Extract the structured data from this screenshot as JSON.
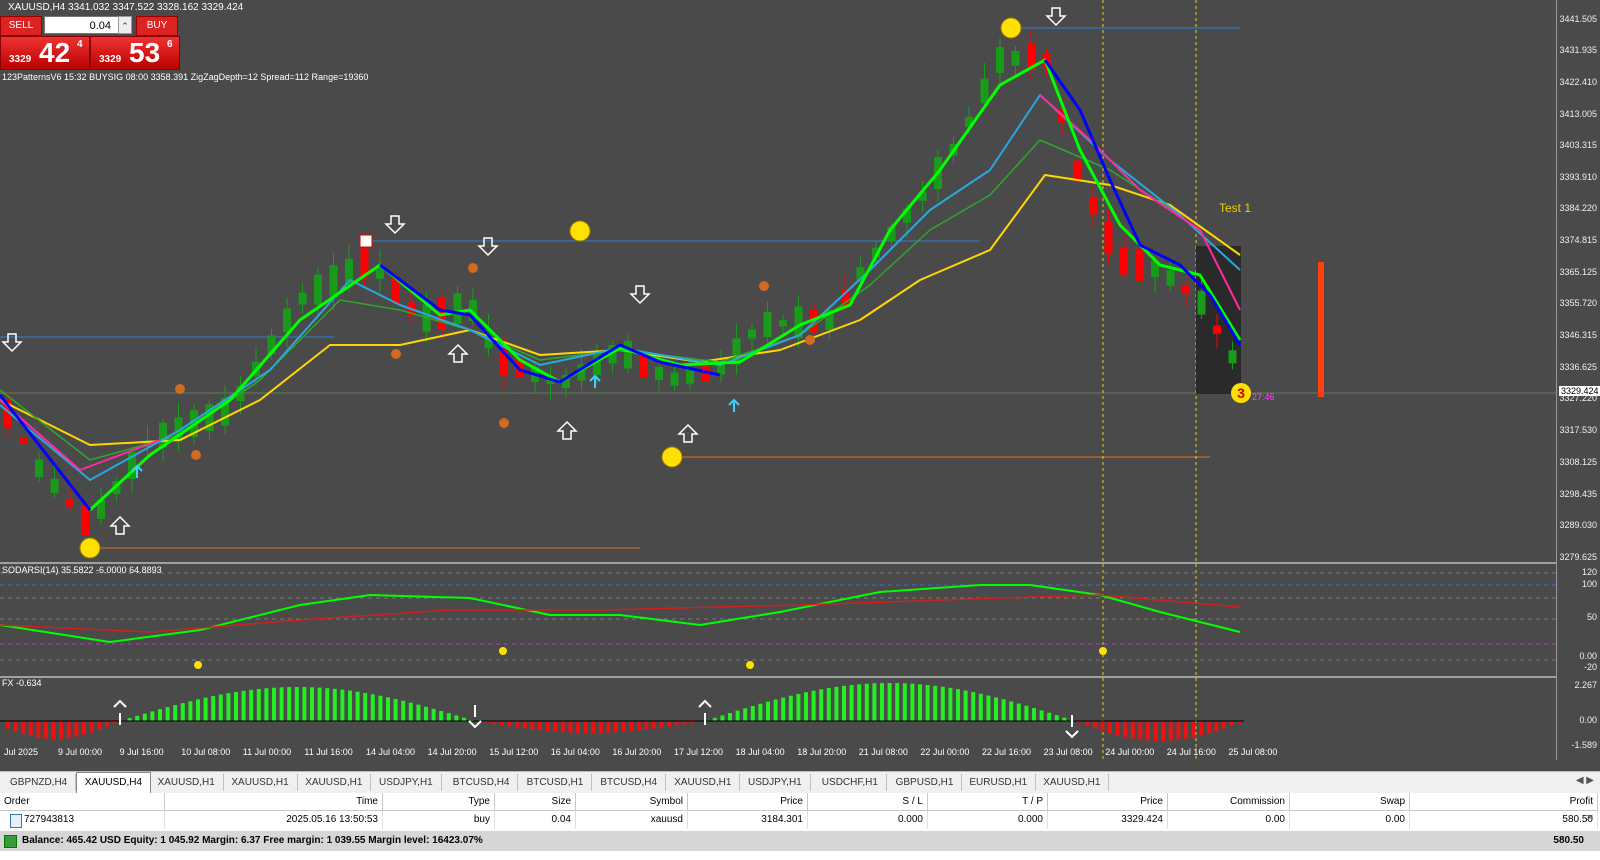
{
  "window": {
    "title": "XAUUSD,H4  3341.032 3347.522 3328.162 3329.424",
    "info_line": "123PatternsV6   15:32   BUYSIG   08:00   3358.391   ZigZagDepth=12   Spread=112   Range=19360"
  },
  "trade_panel": {
    "sell_label": "SELL",
    "buy_label": "BUY",
    "lot": "0.04",
    "sell_price_small": "3329",
    "sell_price_big": "42",
    "sell_price_sup": "4",
    "buy_price_small": "3329",
    "buy_price_big": "53",
    "buy_price_sup": "6"
  },
  "price_scale": {
    "ticks": [
      "3441.505",
      "3431.935",
      "3422.410",
      "3413.005",
      "3403.315",
      "3393.910",
      "3384.220",
      "3374.815",
      "3365.125",
      "3355.720",
      "3346.315",
      "3336.625",
      "3327.220",
      "3317.530",
      "3308.125",
      "3298.435",
      "3289.030",
      "3279.625"
    ],
    "current": "3329.424"
  },
  "annotations": {
    "test_label": "Test 1",
    "timer": "27:46",
    "badge_number": "3"
  },
  "rsi": {
    "label": "SODARSI(14) 35.5822 -6.0000 64.8893",
    "ticks": [
      "120",
      "100",
      "50",
      "0.00",
      "-20"
    ]
  },
  "fx": {
    "label": "FX -0.634",
    "ticks": [
      "2.267",
      "0.00",
      "-1.589"
    ]
  },
  "time_axis": [
    "Jul 2025",
    "9 Jul 00:00",
    "9 Jul 16:00",
    "10 Jul 08:00",
    "11 Jul 00:00",
    "11 Jul 16:00",
    "14 Jul 04:00",
    "14 Jul 20:00",
    "15 Jul 12:00",
    "16 Jul 04:00",
    "16 Jul 20:00",
    "17 Jul 12:00",
    "18 Jul 04:00",
    "18 Jul 20:00",
    "21 Jul 08:00",
    "22 Jul 00:00",
    "22 Jul 16:00",
    "23 Jul 08:00",
    "24 Jul 00:00",
    "24 Jul 16:00",
    "25 Jul 08:00"
  ],
  "tabs": [
    "GBPNZD,H4",
    "XAUUSD,H4",
    "XAUUSD,H1",
    "XAUUSD,H1",
    "XAUUSD,H1",
    "USDJPY,H1",
    "BTCUSD,H4",
    "BTCUSD,H1",
    "BTCUSD,H4",
    "XAUUSD,H1",
    "USDJPY,H1",
    "USDCHF,H1",
    "GBPUSD,H1",
    "EURUSD,H1",
    "XAUUSD,H1"
  ],
  "active_tab": 1,
  "table": {
    "headers": [
      "Order",
      "Time",
      "Type",
      "Size",
      "Symbol",
      "Price",
      "S / L",
      "T / P",
      "Price",
      "Commission",
      "Swap",
      "Profit"
    ],
    "row": [
      "727943813",
      "2025.05.16 13:50:53",
      "buy",
      "0.04",
      "xauusd",
      "3184.301",
      "0.000",
      "0.000",
      "3329.424",
      "0.00",
      "0.00",
      "580.50"
    ],
    "balance_text": "Balance: 465.42 USD  Equity: 1 045.92  Margin: 6.37  Free margin: 1 039.55  Margin level: 16423.07%",
    "balance_profit": "580.50"
  },
  "colors": {
    "bull": "#1a9a1a",
    "bear": "#ff0000",
    "bg": "#4a4a4a",
    "fast_ma": "#00ff00",
    "blue_ma": "#0000ff",
    "cyan_ma": "#29a8e0",
    "yellow_ma": "#ffd700",
    "pink_ma": "#ff2aa0"
  }
}
